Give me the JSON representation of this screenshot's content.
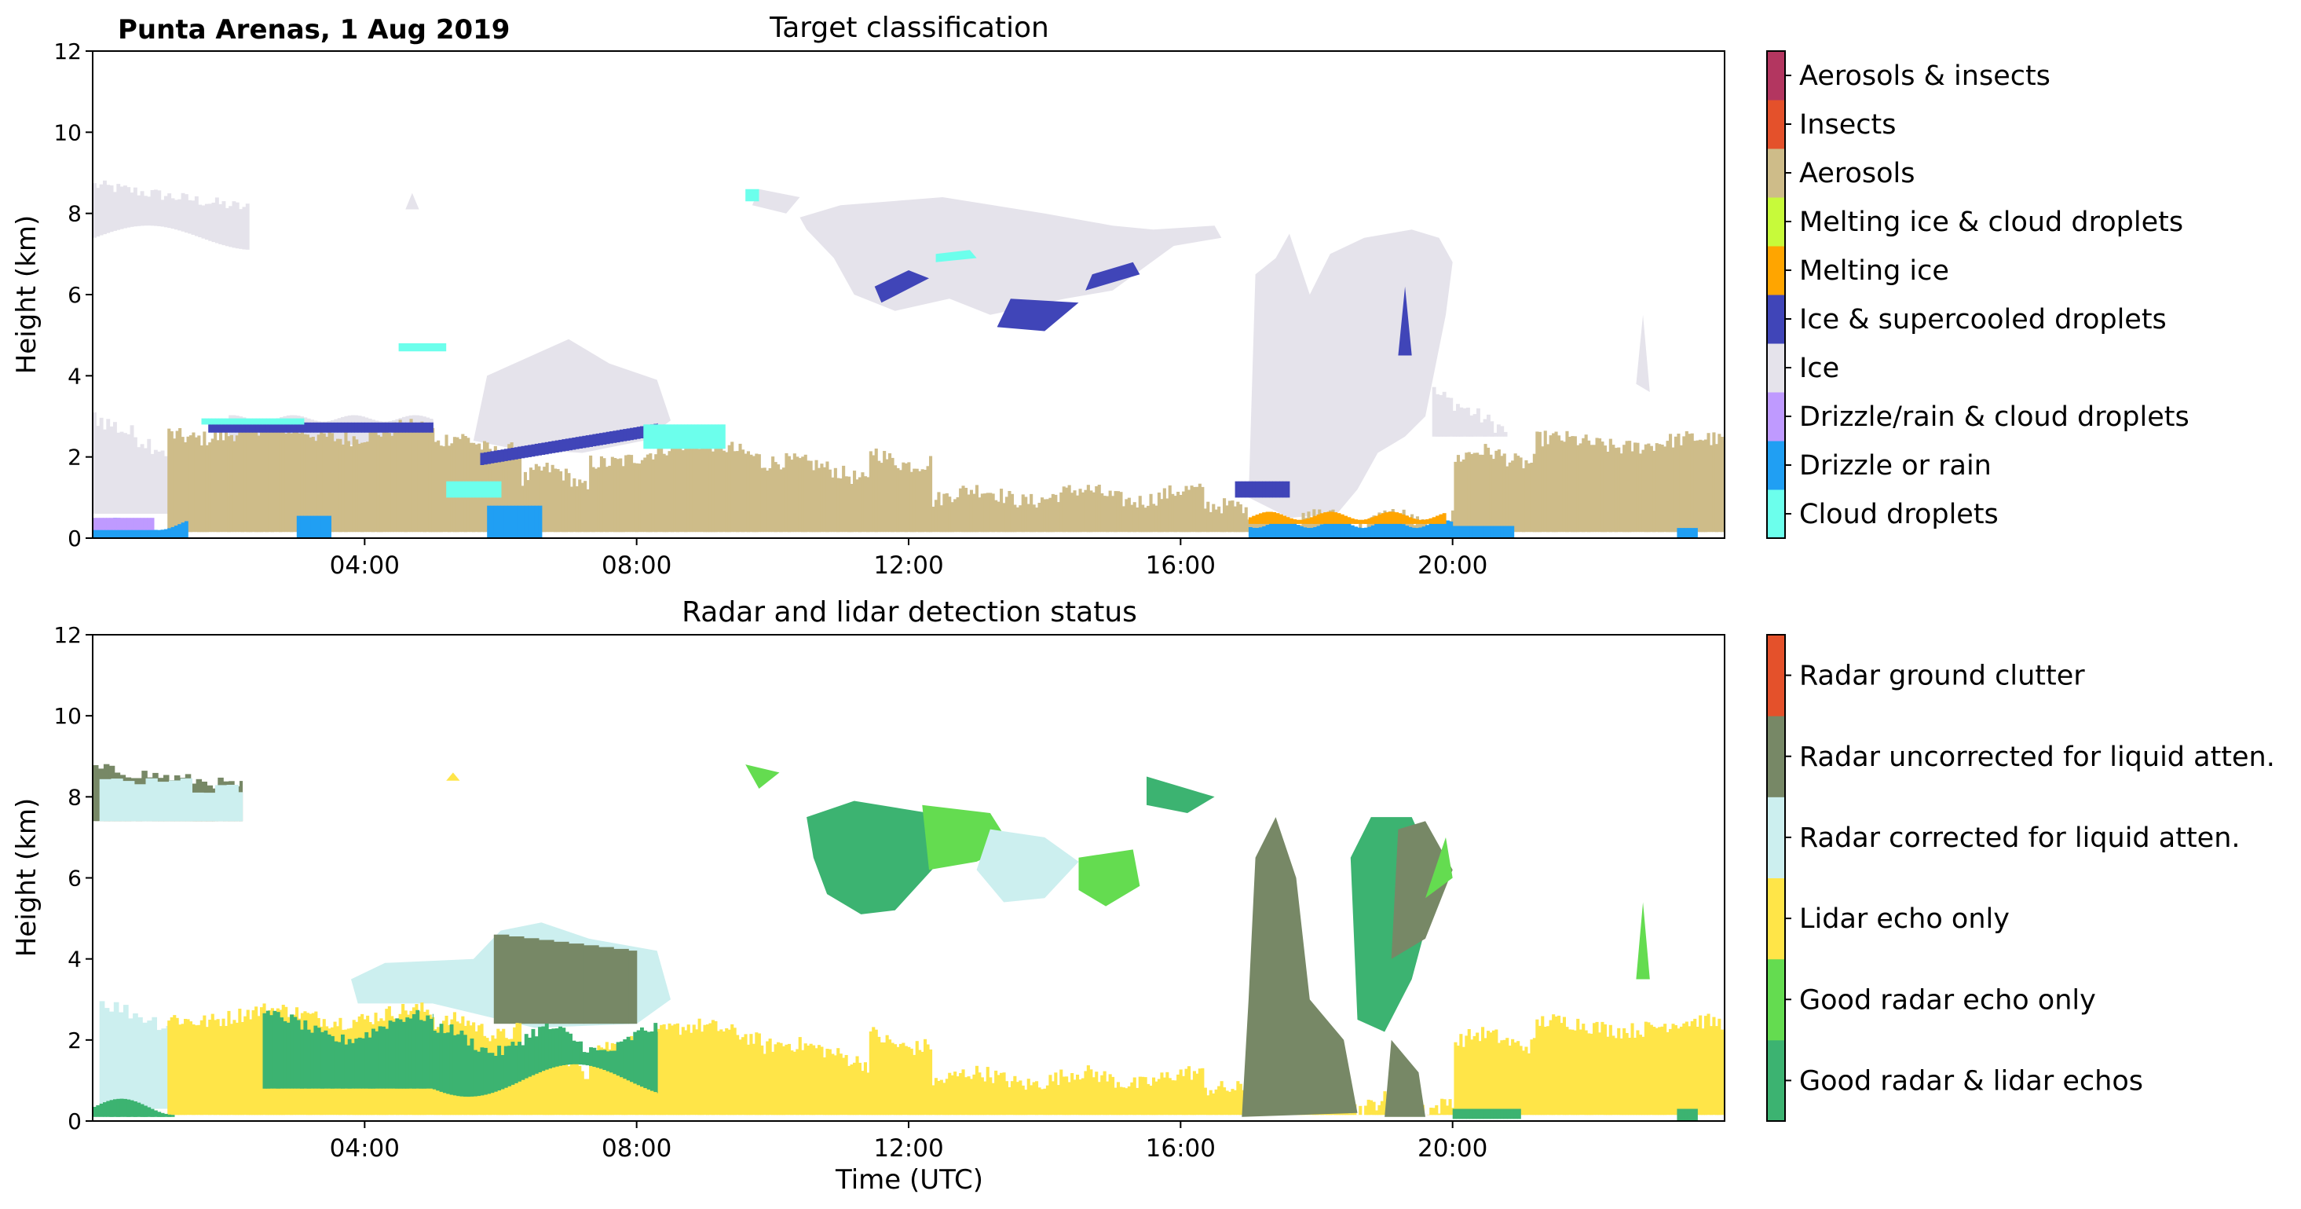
{
  "site_label": "Punta Arenas, 1 Aug 2019",
  "colors": {
    "cloud_droplets": "#6CFFEC",
    "drizzle_or_rain": "#209FF3",
    "drizzle_rain_cloud": "#BF9AFF",
    "ice": "#E5E3EB",
    "ice_supercooled": "#4045B8",
    "melting_ice": "#FFA500",
    "melting_ice_cloud": "#C7FA3A",
    "aerosols": "#CEBC89",
    "insects": "#E4512B",
    "aerosols_insects": "#B33660",
    "good_radar_lidar": "#3CB371",
    "good_radar_only": "#64DC50",
    "lidar_only": "#FFE548",
    "radar_corrected": "#CCEFEF",
    "radar_uncorrected": "#778866",
    "radar_clutter": "#E4512B"
  },
  "chart_data": [
    {
      "type": "heatmap",
      "title": "Target classification",
      "xlabel": "",
      "ylabel": "Height (km)",
      "xlim": [
        0,
        24
      ],
      "ylim": [
        0,
        12
      ],
      "x_ticks": [
        "04:00",
        "08:00",
        "12:00",
        "16:00",
        "20:00"
      ],
      "x_tick_hours": [
        4,
        8,
        12,
        16,
        20
      ],
      "y_ticks": [
        "0",
        "2",
        "4",
        "6",
        "8",
        "10",
        "12"
      ],
      "grid": false,
      "legend": "colorbar-right",
      "legend_entries": [
        "Cloud droplets",
        "Drizzle or rain",
        "Drizzle/rain & cloud droplets",
        "Ice",
        "Ice & supercooled droplets",
        "Melting ice",
        "Melting ice & cloud droplets",
        "Aerosols",
        "Insects",
        "Aerosols & insects"
      ]
    },
    {
      "type": "heatmap",
      "title": "Radar and lidar detection status",
      "xlabel": "Time (UTC)",
      "ylabel": "Height (km)",
      "xlim": [
        0,
        24
      ],
      "ylim": [
        0,
        12
      ],
      "x_ticks": [
        "04:00",
        "08:00",
        "12:00",
        "16:00",
        "20:00"
      ],
      "x_tick_hours": [
        4,
        8,
        12,
        16,
        20
      ],
      "y_ticks": [
        "0",
        "2",
        "4",
        "6",
        "8",
        "10",
        "12"
      ],
      "grid": false,
      "legend": "colorbar-right",
      "legend_entries": [
        "Good radar & lidar echos",
        "Good radar echo only",
        "Lidar echo only",
        "Radar corrected for liquid atten.",
        "Radar uncorrected for liquid atten.",
        "Radar ground clutter"
      ]
    }
  ]
}
